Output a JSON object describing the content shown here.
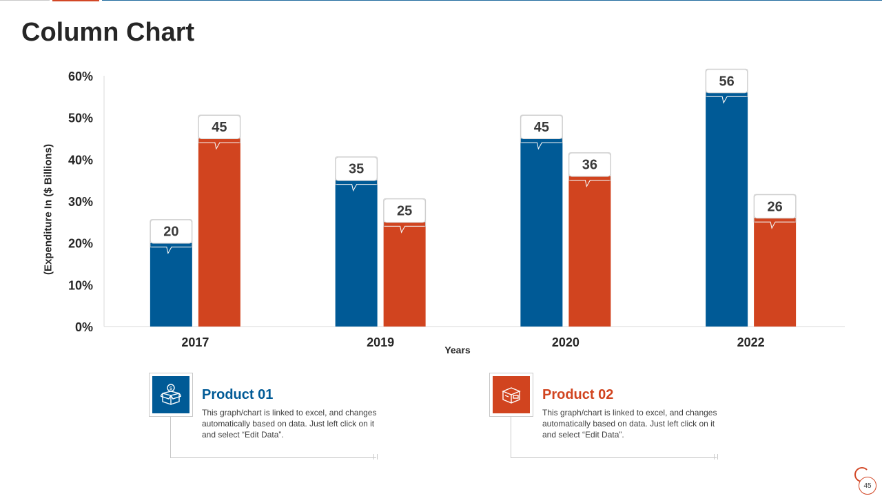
{
  "slide": {
    "title": "Column Chart",
    "page_number": "45"
  },
  "colors": {
    "series1": "#005a96",
    "series2": "#d1441f",
    "axis": "#d9d9d9"
  },
  "chart_data": {
    "type": "bar",
    "categories": [
      "2017",
      "2019",
      "2020",
      "2022"
    ],
    "series": [
      {
        "name": "Product 01",
        "values": [
          20,
          35,
          45,
          56
        ]
      },
      {
        "name": "Product 02",
        "values": [
          45,
          25,
          36,
          26
        ]
      }
    ],
    "xlabel": "Years",
    "ylabel": "(Expenditure In ($ Billions)",
    "ylim": [
      0,
      60
    ],
    "yticks": [
      "0%",
      "10%",
      "20%",
      "30%",
      "40%",
      "50%",
      "60%"
    ],
    "grid": false,
    "data_labels": true
  },
  "legend_cards": [
    {
      "title": "Product 01",
      "icon": "money-box-icon",
      "description": "This graph/chart is linked to excel, and changes automatically based on data. Just left click on it and select “Edit Data”."
    },
    {
      "title": "Product 02",
      "icon": "package-box-icon",
      "description": "This graph/chart is linked to excel, and changes automatically based on data. Just left click on it and select “Edit Data”."
    }
  ]
}
